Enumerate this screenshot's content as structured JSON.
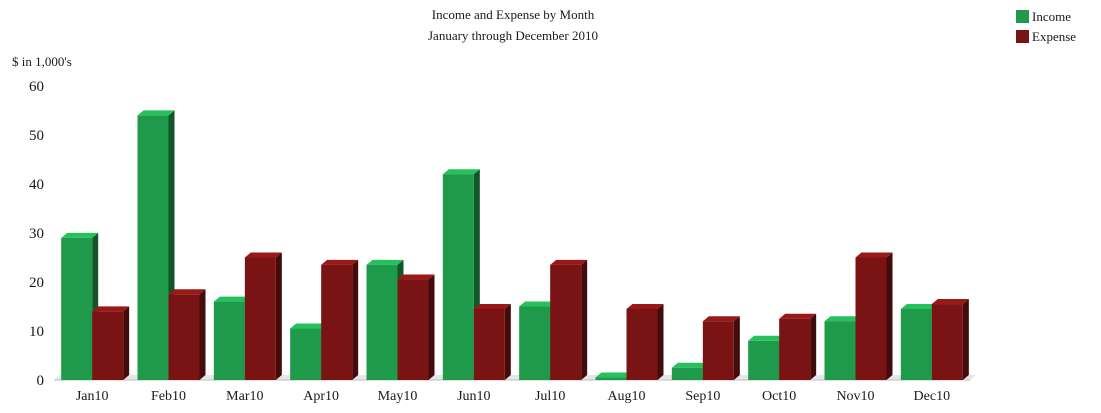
{
  "chart_data": {
    "type": "bar",
    "title": "Income and Expense by Month",
    "subtitle": "January through December 2010",
    "ylabel": "$ in 1,000's",
    "xlabel": "",
    "ylim": [
      0,
      60
    ],
    "yticks": [
      0,
      10,
      20,
      30,
      40,
      50,
      60
    ],
    "categories": [
      "Jan10",
      "Feb10",
      "Mar10",
      "Apr10",
      "May10",
      "Jun10",
      "Jul10",
      "Aug10",
      "Sep10",
      "Oct10",
      "Nov10",
      "Dec10"
    ],
    "series": [
      {
        "name": "Income",
        "color": "#1e9a4a",
        "values": [
          29,
          54,
          16,
          10.5,
          23.5,
          42,
          15,
          0.5,
          2.5,
          8,
          12,
          14.5
        ]
      },
      {
        "name": "Expense",
        "color": "#7a1414",
        "values": [
          14,
          17.5,
          25,
          23.5,
          20.5,
          14.5,
          23.5,
          14.5,
          12,
          12.5,
          25,
          15.5
        ]
      }
    ],
    "grid": false,
    "legend_position": "top-right",
    "style": "3d-bars"
  }
}
